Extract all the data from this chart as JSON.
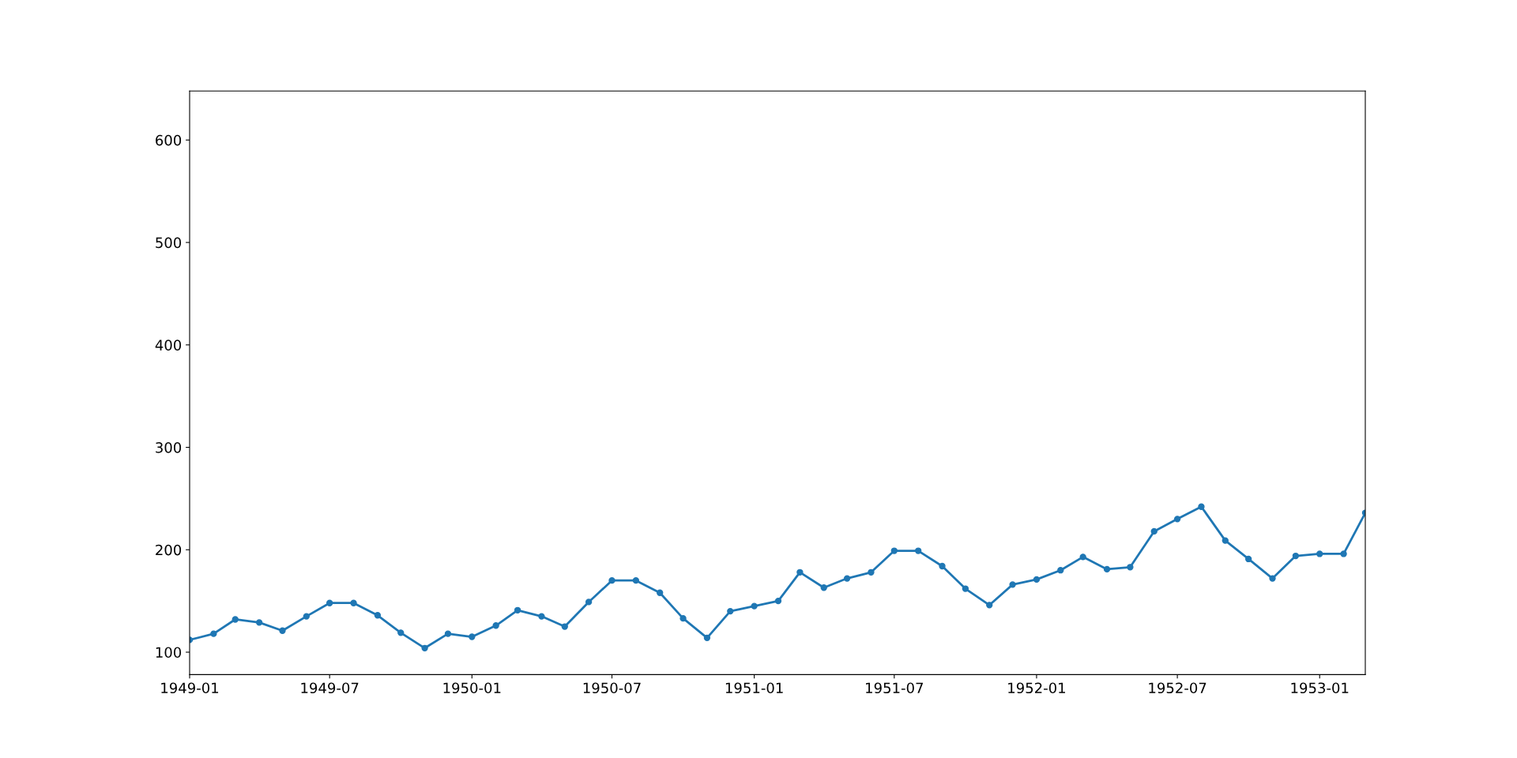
{
  "chart_data": {
    "type": "line",
    "x": [
      "1949-01",
      "1949-02",
      "1949-03",
      "1949-04",
      "1949-05",
      "1949-06",
      "1949-07",
      "1949-08",
      "1949-09",
      "1949-10",
      "1949-11",
      "1949-12",
      "1950-01",
      "1950-02",
      "1950-03",
      "1950-04",
      "1950-05",
      "1950-06",
      "1950-07",
      "1950-08",
      "1950-09",
      "1950-10",
      "1950-11",
      "1950-12",
      "1951-01",
      "1951-02",
      "1951-03",
      "1951-04",
      "1951-05",
      "1951-06",
      "1951-07",
      "1951-08",
      "1951-09",
      "1951-10",
      "1951-11",
      "1951-12",
      "1952-01",
      "1952-02",
      "1952-03",
      "1952-04",
      "1952-05",
      "1952-06",
      "1952-07",
      "1952-08",
      "1952-09",
      "1952-10",
      "1952-11",
      "1952-12",
      "1953-01",
      "1953-02",
      "1953-03"
    ],
    "series": [
      {
        "color": "#1f77b4",
        "values": [
          112,
          118,
          132,
          129,
          121,
          135,
          148,
          148,
          136,
          119,
          104,
          118,
          115,
          126,
          141,
          135,
          125,
          149,
          170,
          170,
          158,
          133,
          114,
          140,
          145,
          150,
          178,
          163,
          172,
          178,
          199,
          199,
          184,
          162,
          146,
          166,
          171,
          180,
          193,
          181,
          183,
          218,
          230,
          242,
          209,
          191,
          172,
          194,
          196,
          196,
          236
        ]
      }
    ],
    "xlim": [
      "1949-01",
      "1953-03"
    ],
    "xticks": [
      "1949-01",
      "1949-07",
      "1950-01",
      "1950-07",
      "1951-01",
      "1951-07",
      "1952-01",
      "1952-07",
      "1953-01"
    ],
    "ylim": [
      78.1,
      647.9
    ],
    "yticks": [
      100,
      200,
      300,
      400,
      500,
      600
    ],
    "marker": "circle",
    "line_style": "solid",
    "grid": false,
    "legend": false
  }
}
